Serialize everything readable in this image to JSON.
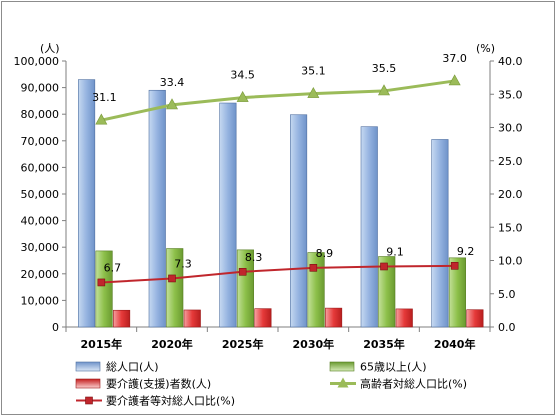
{
  "chart_data": {
    "type": "bar",
    "categories": [
      "2015年",
      "2020年",
      "2025年",
      "2030年",
      "2035年",
      "2040年"
    ],
    "y_left": {
      "unit": "(人)",
      "range": [
        0,
        100000
      ],
      "ticks": [
        "0",
        "10,000",
        "20,000",
        "30,000",
        "40,000",
        "50,000",
        "60,000",
        "70,000",
        "80,000",
        "90,000",
        "100,000"
      ]
    },
    "y_right": {
      "unit": "(%)",
      "range": [
        0,
        40
      ],
      "ticks": [
        "0.0",
        "5.0",
        "10.0",
        "15.0",
        "20.0",
        "25.0",
        "30.0",
        "35.0",
        "40.0"
      ]
    },
    "grid": false,
    "legend_position": "bottom",
    "bar_series": [
      {
        "name": "総人口(人)",
        "axis": "left",
        "color": "#95b3e0",
        "values": [
          93000,
          89000,
          84200,
          79800,
          75300,
          70500
        ]
      },
      {
        "name": "65歳以上(人)",
        "axis": "left",
        "color": "#8dc04a",
        "values": [
          28600,
          29500,
          29000,
          28000,
          26500,
          26000
        ]
      },
      {
        "name": "要介護(支援)者数(人)",
        "axis": "left",
        "color": "#e63a3a",
        "values": [
          6300,
          6400,
          6900,
          7100,
          6800,
          6500
        ]
      }
    ],
    "line_series": [
      {
        "name": "高齢者対総人口比(%)",
        "axis": "right",
        "color": "#9bbb59",
        "marker": "triangle",
        "values": [
          31.1,
          33.4,
          34.5,
          35.1,
          35.5,
          37.0
        ],
        "labels": [
          "31.1",
          "33.4",
          "34.5",
          "35.1",
          "35.5",
          "37.0"
        ]
      },
      {
        "name": "要介護者等対総人口比(%)",
        "axis": "right",
        "color": "#c0262c",
        "marker": "square",
        "values": [
          6.7,
          7.3,
          8.3,
          8.9,
          9.1,
          9.2
        ],
        "labels": [
          "6.7",
          "7.3",
          "8.3",
          "8.9",
          "9.1",
          "9.2"
        ]
      }
    ]
  }
}
